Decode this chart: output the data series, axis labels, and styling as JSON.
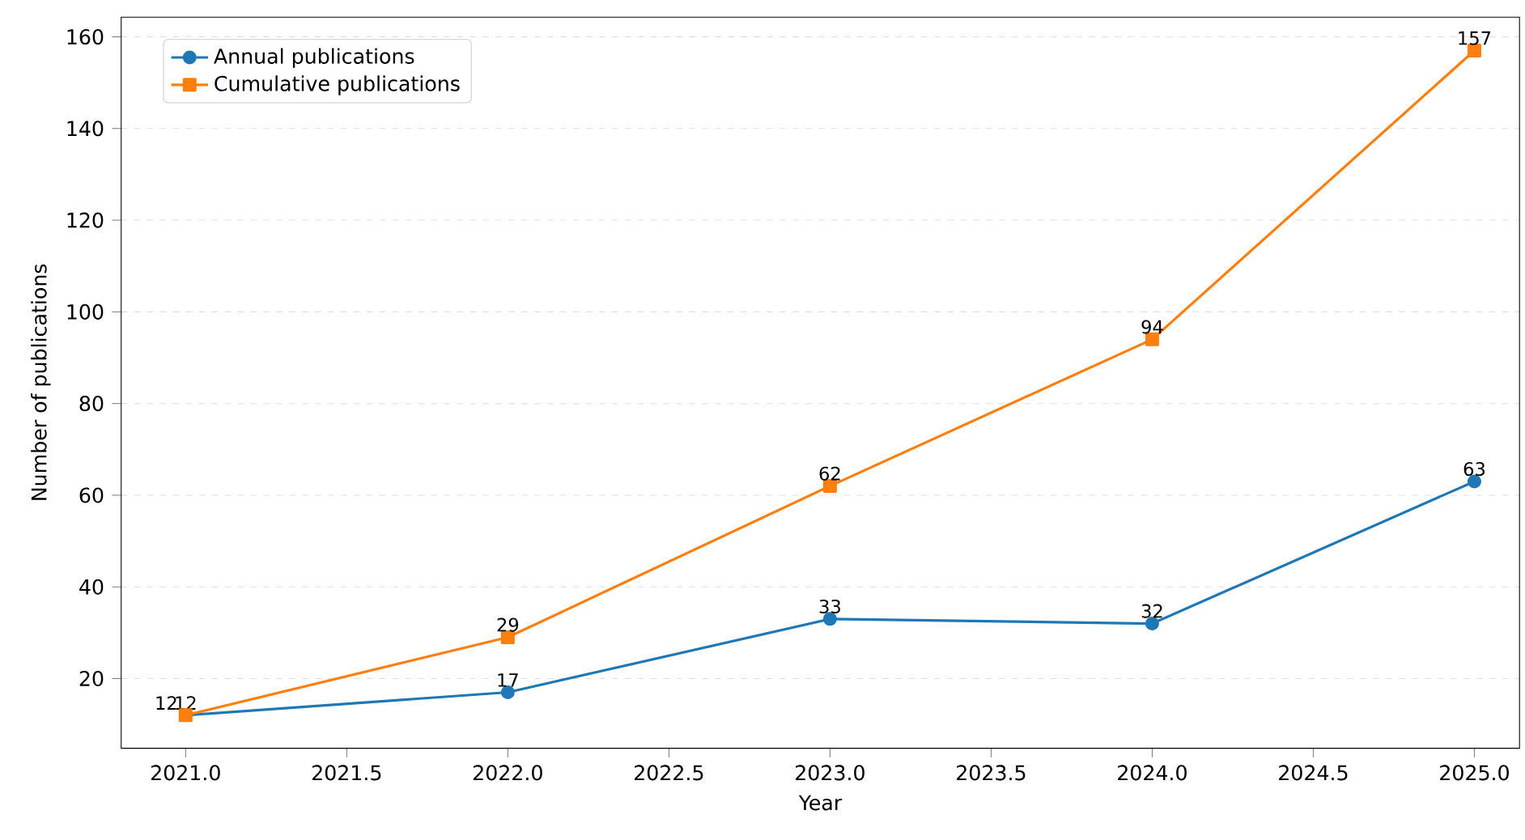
{
  "chart_data": {
    "type": "line",
    "xlabel": "Year",
    "ylabel": "Number of publications",
    "x": [
      2021,
      2022,
      2023,
      2024,
      2025
    ],
    "series": [
      {
        "name": "Annual publications",
        "color": "#1f77b4",
        "marker": "circle",
        "values": [
          12,
          17,
          33,
          32,
          63
        ]
      },
      {
        "name": "Cumulative publications",
        "color": "#ff7f0e",
        "marker": "square",
        "values": [
          12,
          29,
          62,
          94,
          157
        ]
      }
    ],
    "xlim": [
      2020.8,
      2025.14
    ],
    "ylim": [
      4.8,
      164.3
    ],
    "xticks": [
      {
        "value": 2021,
        "label": "2021.0"
      },
      {
        "value": 2021.5,
        "label": "2021.5"
      },
      {
        "value": 2022,
        "label": "2022.0"
      },
      {
        "value": 2022.5,
        "label": "2022.5"
      },
      {
        "value": 2023,
        "label": "2023.0"
      },
      {
        "value": 2023.5,
        "label": "2023.5"
      },
      {
        "value": 2024,
        "label": "2024.0"
      },
      {
        "value": 2024.5,
        "label": "2024.5"
      },
      {
        "value": 2025,
        "label": "2025.0"
      }
    ],
    "yticks": [
      20,
      40,
      60,
      80,
      100,
      120,
      140,
      160
    ],
    "grid": "y",
    "legend": "top left",
    "data_labels": true,
    "line_style": "solid"
  }
}
